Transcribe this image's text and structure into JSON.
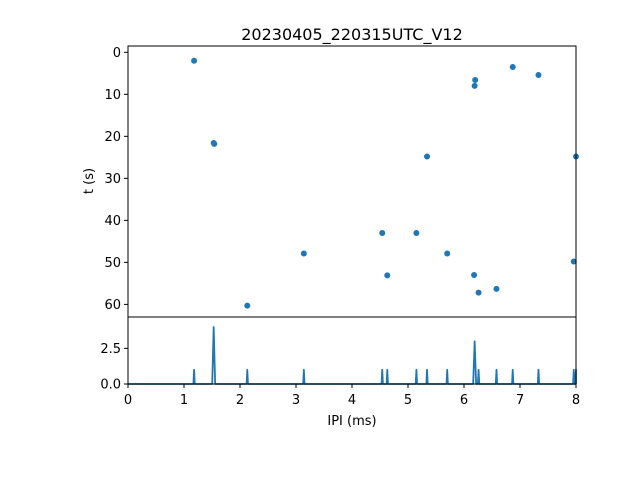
{
  "chart_data": [
    {
      "type": "scatter",
      "title": "20230405_220315UTC_V12",
      "xlabel": "",
      "ylabel": "t (s)",
      "xlim": [
        0,
        8
      ],
      "ylim": [
        63,
        -1.5
      ],
      "y_inverted": true,
      "yticks": [
        0,
        10,
        20,
        30,
        40,
        50,
        60
      ],
      "grid": false,
      "color": "#1f77b4",
      "points": [
        {
          "x": 1.18,
          "y": 2.0
        },
        {
          "x": 1.53,
          "y": 21.6
        },
        {
          "x": 1.54,
          "y": 21.8
        },
        {
          "x": 2.13,
          "y": 60.3
        },
        {
          "x": 3.14,
          "y": 47.9
        },
        {
          "x": 4.54,
          "y": 43.0
        },
        {
          "x": 4.63,
          "y": 53.1
        },
        {
          "x": 5.15,
          "y": 43.0
        },
        {
          "x": 5.34,
          "y": 24.8
        },
        {
          "x": 5.7,
          "y": 47.9
        },
        {
          "x": 6.18,
          "y": 53.0
        },
        {
          "x": 6.19,
          "y": 8.0
        },
        {
          "x": 6.2,
          "y": 6.6
        },
        {
          "x": 6.26,
          "y": 57.2
        },
        {
          "x": 6.58,
          "y": 56.3
        },
        {
          "x": 6.87,
          "y": 3.5
        },
        {
          "x": 7.33,
          "y": 5.4
        },
        {
          "x": 7.96,
          "y": 49.8
        },
        {
          "x": 8.0,
          "y": 24.8
        }
      ]
    },
    {
      "type": "line",
      "title": "",
      "xlabel": "IPI (ms)",
      "ylabel": "",
      "xlim": [
        0,
        8
      ],
      "ylim": [
        0,
        4.7
      ],
      "xticks": [
        0,
        1,
        2,
        3,
        4,
        5,
        6,
        7,
        8
      ],
      "yticks": [
        0.0,
        2.5
      ],
      "ytick_labels": [
        "0.0",
        "2.5"
      ],
      "grid": false,
      "color": "#1f77b4",
      "peaks": [
        {
          "x": 1.18,
          "y": 1.0
        },
        {
          "x": 1.53,
          "y": 4.0
        },
        {
          "x": 2.13,
          "y": 1.0
        },
        {
          "x": 3.14,
          "y": 1.0
        },
        {
          "x": 4.54,
          "y": 1.0
        },
        {
          "x": 4.63,
          "y": 1.0
        },
        {
          "x": 5.15,
          "y": 1.0
        },
        {
          "x": 5.34,
          "y": 1.0
        },
        {
          "x": 5.7,
          "y": 1.0
        },
        {
          "x": 6.19,
          "y": 3.0
        },
        {
          "x": 6.26,
          "y": 1.0
        },
        {
          "x": 6.58,
          "y": 1.0
        },
        {
          "x": 6.87,
          "y": 1.0
        },
        {
          "x": 7.33,
          "y": 1.0
        },
        {
          "x": 7.96,
          "y": 1.0
        },
        {
          "x": 8.0,
          "y": 1.0
        }
      ]
    }
  ]
}
